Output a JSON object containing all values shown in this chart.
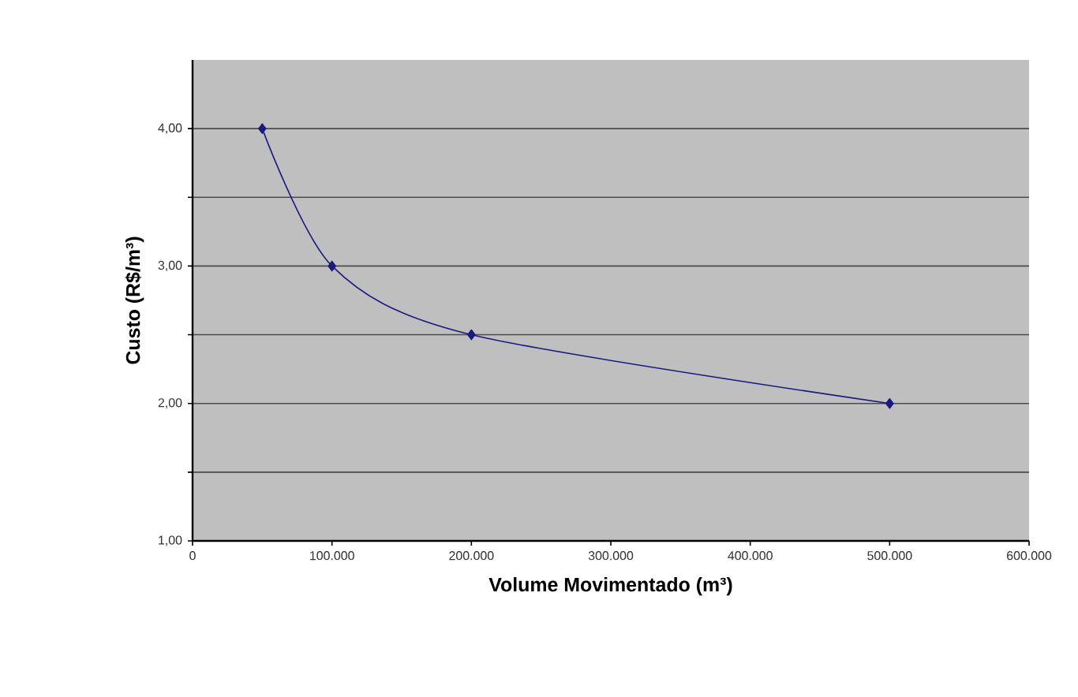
{
  "chart_data": {
    "type": "line",
    "xlabel": "Volume Movimentado (m³)",
    "ylabel": "Custo (R$/m³)",
    "x": [
      50000,
      100000,
      200000,
      500000
    ],
    "series": [
      {
        "color": "#1a1a80",
        "values": [
          4.0,
          3.0,
          2.5,
          2.0
        ]
      }
    ],
    "xlim": [
      0,
      600000
    ],
    "xticks": [
      {
        "value": 0,
        "label": "0"
      },
      {
        "value": 100000,
        "label": "100.000"
      },
      {
        "value": 200000,
        "label": "200.000"
      },
      {
        "value": 300000,
        "label": "300.000"
      },
      {
        "value": 400000,
        "label": "400.000"
      },
      {
        "value": 500000,
        "label": "500.000"
      },
      {
        "value": 600000,
        "label": "600.000"
      }
    ],
    "ylim": [
      1,
      4.5
    ],
    "yticks": [
      {
        "value": 1,
        "label": "1,00"
      },
      {
        "value": 1.5,
        "label": null
      },
      {
        "value": 2,
        "label": "2,00"
      },
      {
        "value": 2.5,
        "label": null
      },
      {
        "value": 3,
        "label": "3,00"
      },
      {
        "value": 3.5,
        "label": null
      },
      {
        "value": 4,
        "label": "4,00"
      }
    ],
    "grid": "y",
    "marker": "diamond",
    "line_style": "solid"
  }
}
